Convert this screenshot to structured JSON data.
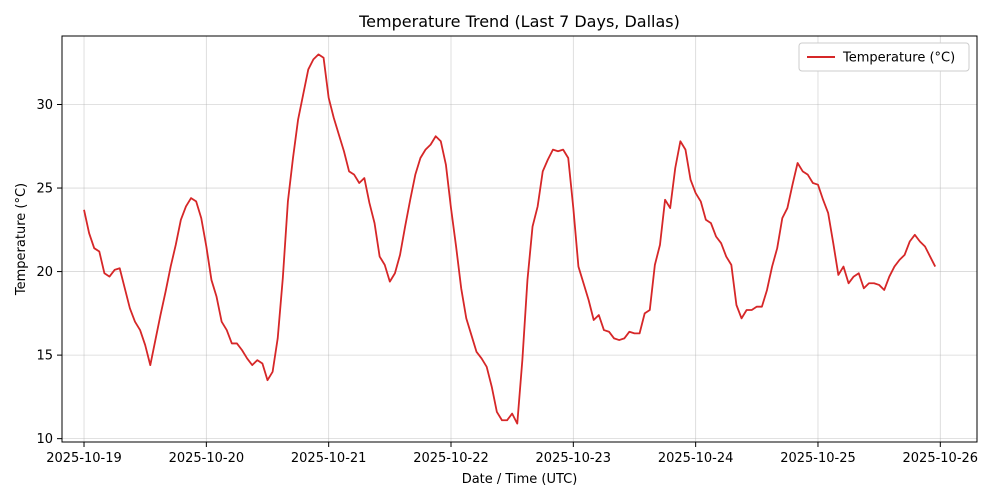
{
  "chart_data": {
    "type": "line",
    "title": "Temperature Trend (Last 7 Days, Dallas)",
    "xlabel": "Date / Time (UTC)",
    "ylabel": "Temperature (°C)",
    "x_ticks": [
      "2025-10-19",
      "2025-10-20",
      "2025-10-21",
      "2025-10-22",
      "2025-10-23",
      "2025-10-24",
      "2025-10-25",
      "2025-10-26"
    ],
    "y_ticks": [
      10,
      15,
      20,
      25,
      30
    ],
    "xlim": [
      -0.18,
      7.3
    ],
    "ylim": [
      9.8,
      34.1
    ],
    "grid": true,
    "legend_position": "top-right",
    "series": [
      {
        "name": "Temperature (°C)",
        "color": "#d62728",
        "x_start": "2025-10-19T00:00Z",
        "x_step_hours": 1,
        "values": [
          23.7,
          22.3,
          21.4,
          21.2,
          19.9,
          19.7,
          20.1,
          20.2,
          19.0,
          17.8,
          17.0,
          16.5,
          15.6,
          14.4,
          15.9,
          17.4,
          18.8,
          20.3,
          21.6,
          23.1,
          23.9,
          24.4,
          24.2,
          23.2,
          21.5,
          19.5,
          18.5,
          17.0,
          16.5,
          15.7,
          15.7,
          15.3,
          14.8,
          14.4,
          14.7,
          14.5,
          13.5,
          14.0,
          16.0,
          19.6,
          24.2,
          26.8,
          29.1,
          30.6,
          32.1,
          32.7,
          33.0,
          32.8,
          30.4,
          29.2,
          28.2,
          27.2,
          26.0,
          25.8,
          25.3,
          25.6,
          24.1,
          22.9,
          20.9,
          20.4,
          19.4,
          19.9,
          21.0,
          22.7,
          24.3,
          25.8,
          26.8,
          27.3,
          27.6,
          28.1,
          27.8,
          26.4,
          23.8,
          21.5,
          19.0,
          17.2,
          16.2,
          15.2,
          14.8,
          14.3,
          13.1,
          11.6,
          11.1,
          11.1,
          11.5,
          10.9,
          14.7,
          19.5,
          22.7,
          23.9,
          26.0,
          26.7,
          27.3,
          27.2,
          27.3,
          26.8,
          23.8,
          20.3,
          19.3,
          18.3,
          17.1,
          17.4,
          16.5,
          16.4,
          16.0,
          15.9,
          16.0,
          16.4,
          16.3,
          16.3,
          17.5,
          17.7,
          20.4,
          21.6,
          24.3,
          23.8,
          26.2,
          27.8,
          27.3,
          25.5,
          24.7,
          24.2,
          23.1,
          22.9,
          22.1,
          21.7,
          20.9,
          20.4,
          18.0,
          17.2,
          17.7,
          17.7,
          17.9,
          17.9,
          18.9,
          20.3,
          21.4,
          23.2,
          23.8,
          25.2,
          26.5,
          26.0,
          25.8,
          25.3,
          25.2,
          24.3,
          23.5,
          21.7,
          19.8,
          20.3,
          19.3,
          19.7,
          19.9,
          19.0,
          19.3,
          19.3,
          19.2,
          18.9,
          19.7,
          20.3,
          20.7,
          21.0,
          21.8,
          22.2,
          21.8,
          21.5,
          20.9,
          20.3
        ]
      }
    ]
  }
}
